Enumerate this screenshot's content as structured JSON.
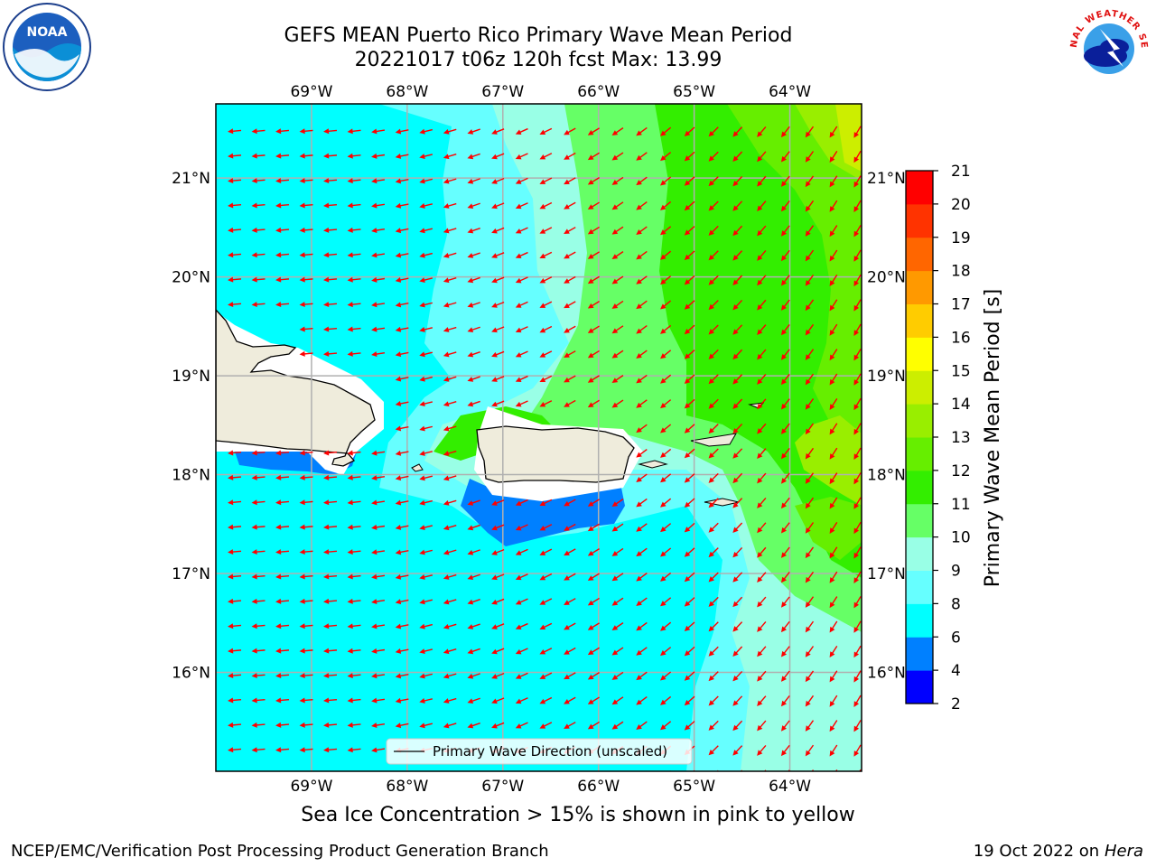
{
  "title": {
    "line1": "GEFS MEAN Puerto Rico Primary Wave Mean Period",
    "line2": "20221017 t06z 120h fcst   Max: 13.99"
  },
  "logos": {
    "left": {
      "icon": "noaa-logo",
      "text": "NOAA"
    },
    "right": {
      "icon": "nws-logo",
      "text": "NATIONAL WEATHER SERVICE"
    }
  },
  "map": {
    "lon_range": [
      -70.0,
      -63.25
    ],
    "lat_range": [
      15.0,
      21.75
    ],
    "lon_labels": [
      "69°W",
      "68°W",
      "67°W",
      "66°W",
      "65°W",
      "64°W"
    ],
    "lon_values": [
      -69,
      -68,
      -67,
      -66,
      -65,
      -64
    ],
    "lat_labels": [
      "21°N",
      "20°N",
      "19°N",
      "18°N",
      "17°N",
      "16°N"
    ],
    "lat_values": [
      21,
      20,
      19,
      18,
      17,
      16
    ],
    "grid": true,
    "legend": {
      "label": "Primary Wave Direction (unscaled)",
      "placement": "bottom-center"
    },
    "arrow_color": "#ff0000",
    "land_color": "#efecdc",
    "coast_color": "#000000"
  },
  "colorbar": {
    "label": "Primary Wave Mean Period [s]",
    "ticks": [
      2,
      4,
      6,
      8,
      9,
      10,
      11,
      12,
      13,
      14,
      15,
      16,
      17,
      18,
      19,
      20,
      21
    ],
    "colors": [
      "#0000ff",
      "#0080ff",
      "#00ffff",
      "#66ffff",
      "#99ffe6",
      "#66ff66",
      "#33ee00",
      "#66ee00",
      "#99ee00",
      "#ccee00",
      "#ffff00",
      "#ffcc00",
      "#ff9900",
      "#ff6600",
      "#ff3300",
      "#ff0000"
    ]
  },
  "notes": {
    "sea_ice": "Sea Ice Concentration > 15% is shown in pink to yellow"
  },
  "footer": {
    "left": "NCEP/EMC/Verification Post Processing Product Generation Branch",
    "right_prefix": "19 Oct 2022 on ",
    "right_machine": "Hera"
  }
}
